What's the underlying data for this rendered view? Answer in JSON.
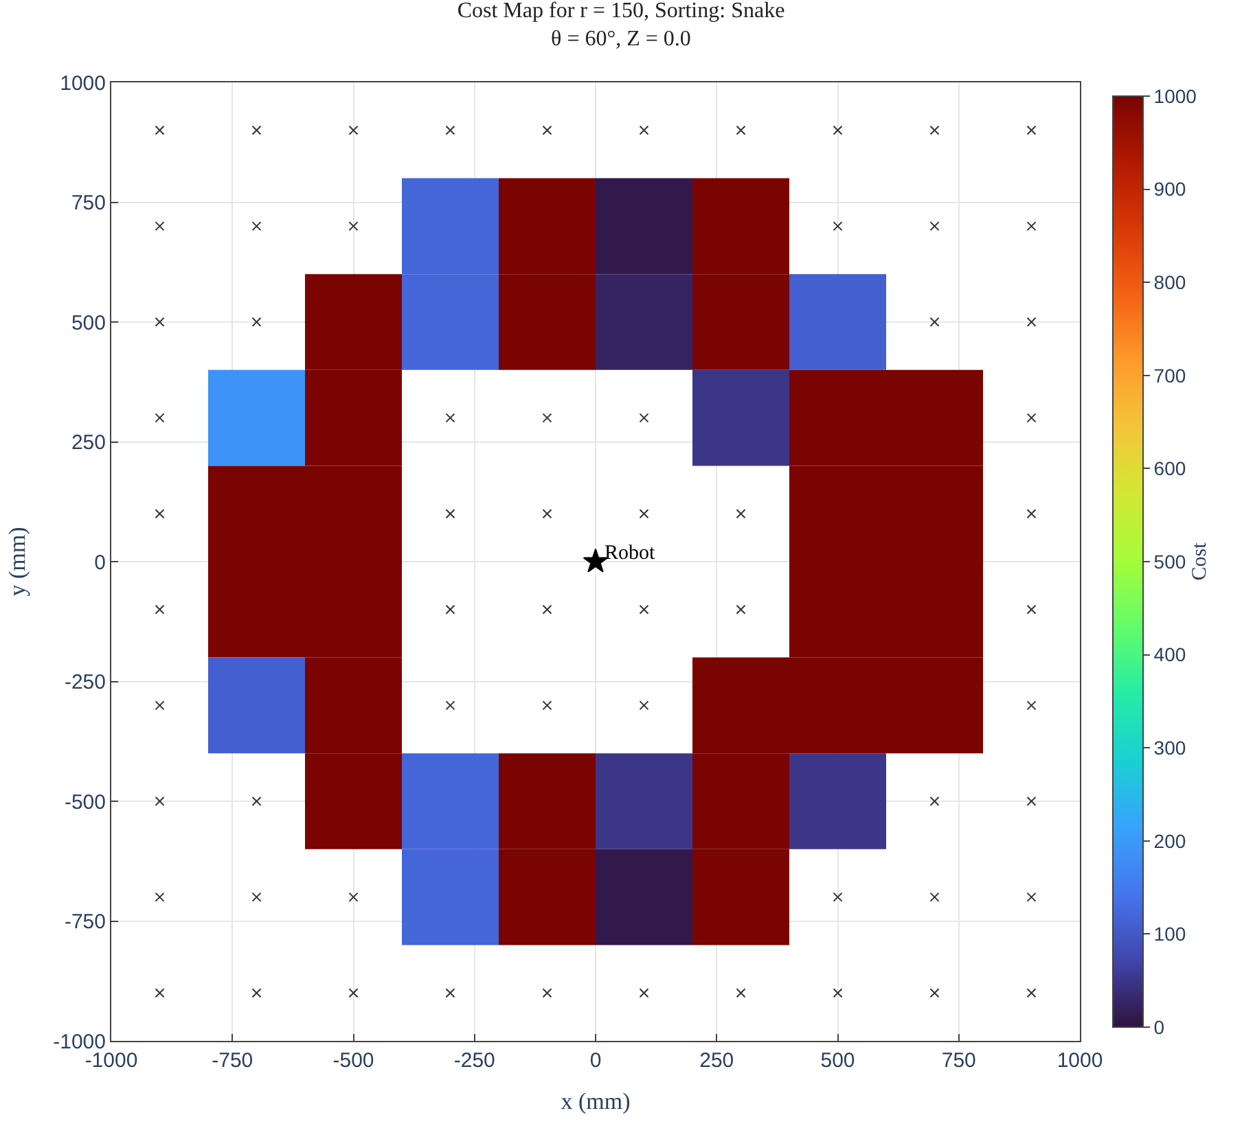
{
  "chart_data": {
    "type": "heatmap",
    "title": "Cost Map for r = 150, Sorting: Snake",
    "subtitle": "θ = 60°, Z = 0.0",
    "xlabel": "x (mm)",
    "ylabel": "y (mm)",
    "clabel": "Cost",
    "x": [
      -700,
      -500,
      -300,
      -100,
      100,
      300,
      500,
      700
    ],
    "y": [
      700,
      500,
      300,
      100,
      -100,
      -300,
      -500,
      -700
    ],
    "cells": [
      [
        null,
        null,
        120,
        1000,
        10,
        1000,
        null,
        null
      ],
      [
        null,
        1000,
        120,
        1000,
        25,
        1000,
        110,
        null
      ],
      [
        190,
        1000,
        null,
        null,
        null,
        50,
        1000,
        1000
      ],
      [
        1000,
        1000,
        null,
        null,
        null,
        null,
        1000,
        1000
      ],
      [
        1000,
        1000,
        null,
        null,
        null,
        null,
        1000,
        1000
      ],
      [
        110,
        1000,
        null,
        null,
        null,
        1000,
        1000,
        1000
      ],
      [
        null,
        1000,
        120,
        1000,
        50,
        1000,
        50,
        null
      ],
      [
        null,
        null,
        120,
        1000,
        10,
        1000,
        null,
        null
      ]
    ],
    "clim": [
      0,
      1000
    ],
    "cticks": [
      0,
      100,
      200,
      300,
      400,
      500,
      600,
      700,
      800,
      900,
      1000
    ],
    "xlim": [
      -1000,
      1000
    ],
    "ylim": [
      -1000,
      1000
    ],
    "xticks": [
      -1000,
      -750,
      -500,
      -250,
      0,
      250,
      500,
      750,
      1000
    ],
    "yticks": [
      -1000,
      -750,
      -500,
      -250,
      0,
      250,
      500,
      750,
      1000
    ],
    "grid": true,
    "series": [
      {
        "type": "scatter",
        "marker": "cross",
        "color": "#333333",
        "x": [
          -900,
          -700,
          -500,
          -300,
          -100,
          100,
          300,
          500,
          700,
          900,
          -900,
          -700,
          -500,
          500,
          700,
          900,
          -900,
          -700,
          700,
          900,
          -900,
          -300,
          -100,
          100,
          900,
          -900,
          -300,
          -100,
          100,
          300,
          900,
          -900,
          -300,
          -100,
          100,
          300,
          900,
          -900,
          -300,
          -100,
          100,
          900,
          -900,
          -700,
          700,
          900,
          -900,
          -700,
          -500,
          500,
          700,
          900,
          -900,
          -700,
          -500,
          -300,
          -100,
          100,
          300,
          500,
          700,
          900
        ],
        "values": [
          900,
          900,
          900,
          900,
          900,
          900,
          900,
          900,
          900,
          900,
          700,
          700,
          700,
          700,
          700,
          700,
          500,
          500,
          500,
          500,
          300,
          300,
          300,
          300,
          300,
          100,
          100,
          100,
          100,
          100,
          100,
          -100,
          -100,
          -100,
          -100,
          -100,
          -100,
          -300,
          -300,
          -300,
          -300,
          -300,
          -500,
          -500,
          -500,
          -500,
          -700,
          -700,
          -700,
          -700,
          -700,
          -700,
          -900,
          -900,
          -900,
          -900,
          -900,
          -900,
          -900,
          -900,
          -900,
          -900
        ]
      },
      {
        "type": "scatter",
        "marker": "star",
        "color": "#000000",
        "x": [
          0
        ],
        "values": [
          0
        ]
      }
    ],
    "annotations": [
      {
        "text": "Robot",
        "x": 0,
        "y": 0
      }
    ]
  }
}
